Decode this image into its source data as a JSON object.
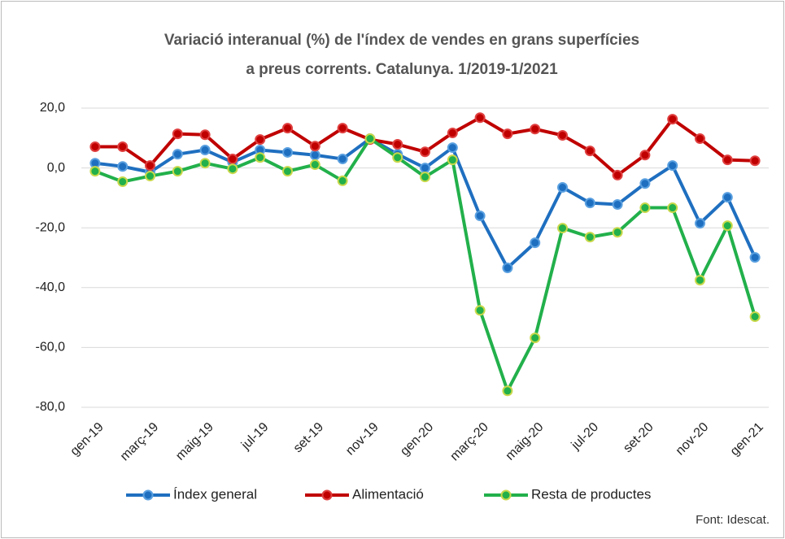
{
  "chart_data": {
    "type": "line",
    "title": [
      "Variació interanual (%) de l'índex de vendes en grans superfícies",
      "a preus corrents. Catalunya.  1/2019-1/2021"
    ],
    "categories": [
      "gen-19",
      null,
      "març-19",
      null,
      "maig-19",
      null,
      "jul-19",
      null,
      "set-19",
      null,
      "nov-19",
      null,
      "gen-20",
      null,
      "març-20",
      null,
      "maig-20",
      null,
      "jul-20",
      null,
      "set-20",
      null,
      "nov-20",
      null,
      "gen-21"
    ],
    "series": [
      {
        "name": "Índex general",
        "color": "#1f6fc0",
        "values": [
          1.6,
          0.5,
          -1.4,
          4.6,
          6.0,
          1.9,
          6.0,
          5.2,
          4.3,
          3.0,
          9.8,
          4.6,
          0.0,
          6.8,
          -16.0,
          -33.4,
          -25.0,
          -6.5,
          -11.7,
          -12.2,
          -5.2,
          0.8,
          -18.5,
          -9.8,
          -29.9
        ]
      },
      {
        "name": "Alimentació",
        "color": "#c00000",
        "values": [
          7.1,
          7.1,
          0.8,
          11.4,
          11.1,
          3.0,
          9.5,
          13.3,
          7.3,
          13.3,
          9.5,
          7.9,
          5.4,
          11.7,
          16.8,
          11.4,
          13.0,
          10.9,
          5.7,
          -2.4,
          4.3,
          16.3,
          9.8,
          2.7,
          2.4
        ]
      },
      {
        "name": "Resta de productes",
        "color": "#22b04b",
        "values": [
          -1.1,
          -4.6,
          -2.7,
          -1.1,
          1.6,
          -0.3,
          3.5,
          -1.1,
          1.1,
          -4.3,
          9.8,
          3.5,
          -3.0,
          2.7,
          -47.6,
          -74.5,
          -56.8,
          -20.1,
          -23.1,
          -21.5,
          -13.3,
          -13.3,
          -37.5,
          -19.3,
          -49.7
        ]
      }
    ],
    "ylim": [
      -80,
      20
    ],
    "yticks": [
      {
        "value": 20,
        "label": "20,0"
      },
      {
        "value": 0,
        "label": "0,0"
      },
      {
        "value": -20,
        "label": "-20,0"
      },
      {
        "value": -40,
        "label": "-40,0"
      },
      {
        "value": -60,
        "label": "-60,0"
      },
      {
        "value": -80,
        "label": "-80,0"
      }
    ],
    "grid": true,
    "legend": "bottom",
    "annotation": "Font: Idescat."
  }
}
